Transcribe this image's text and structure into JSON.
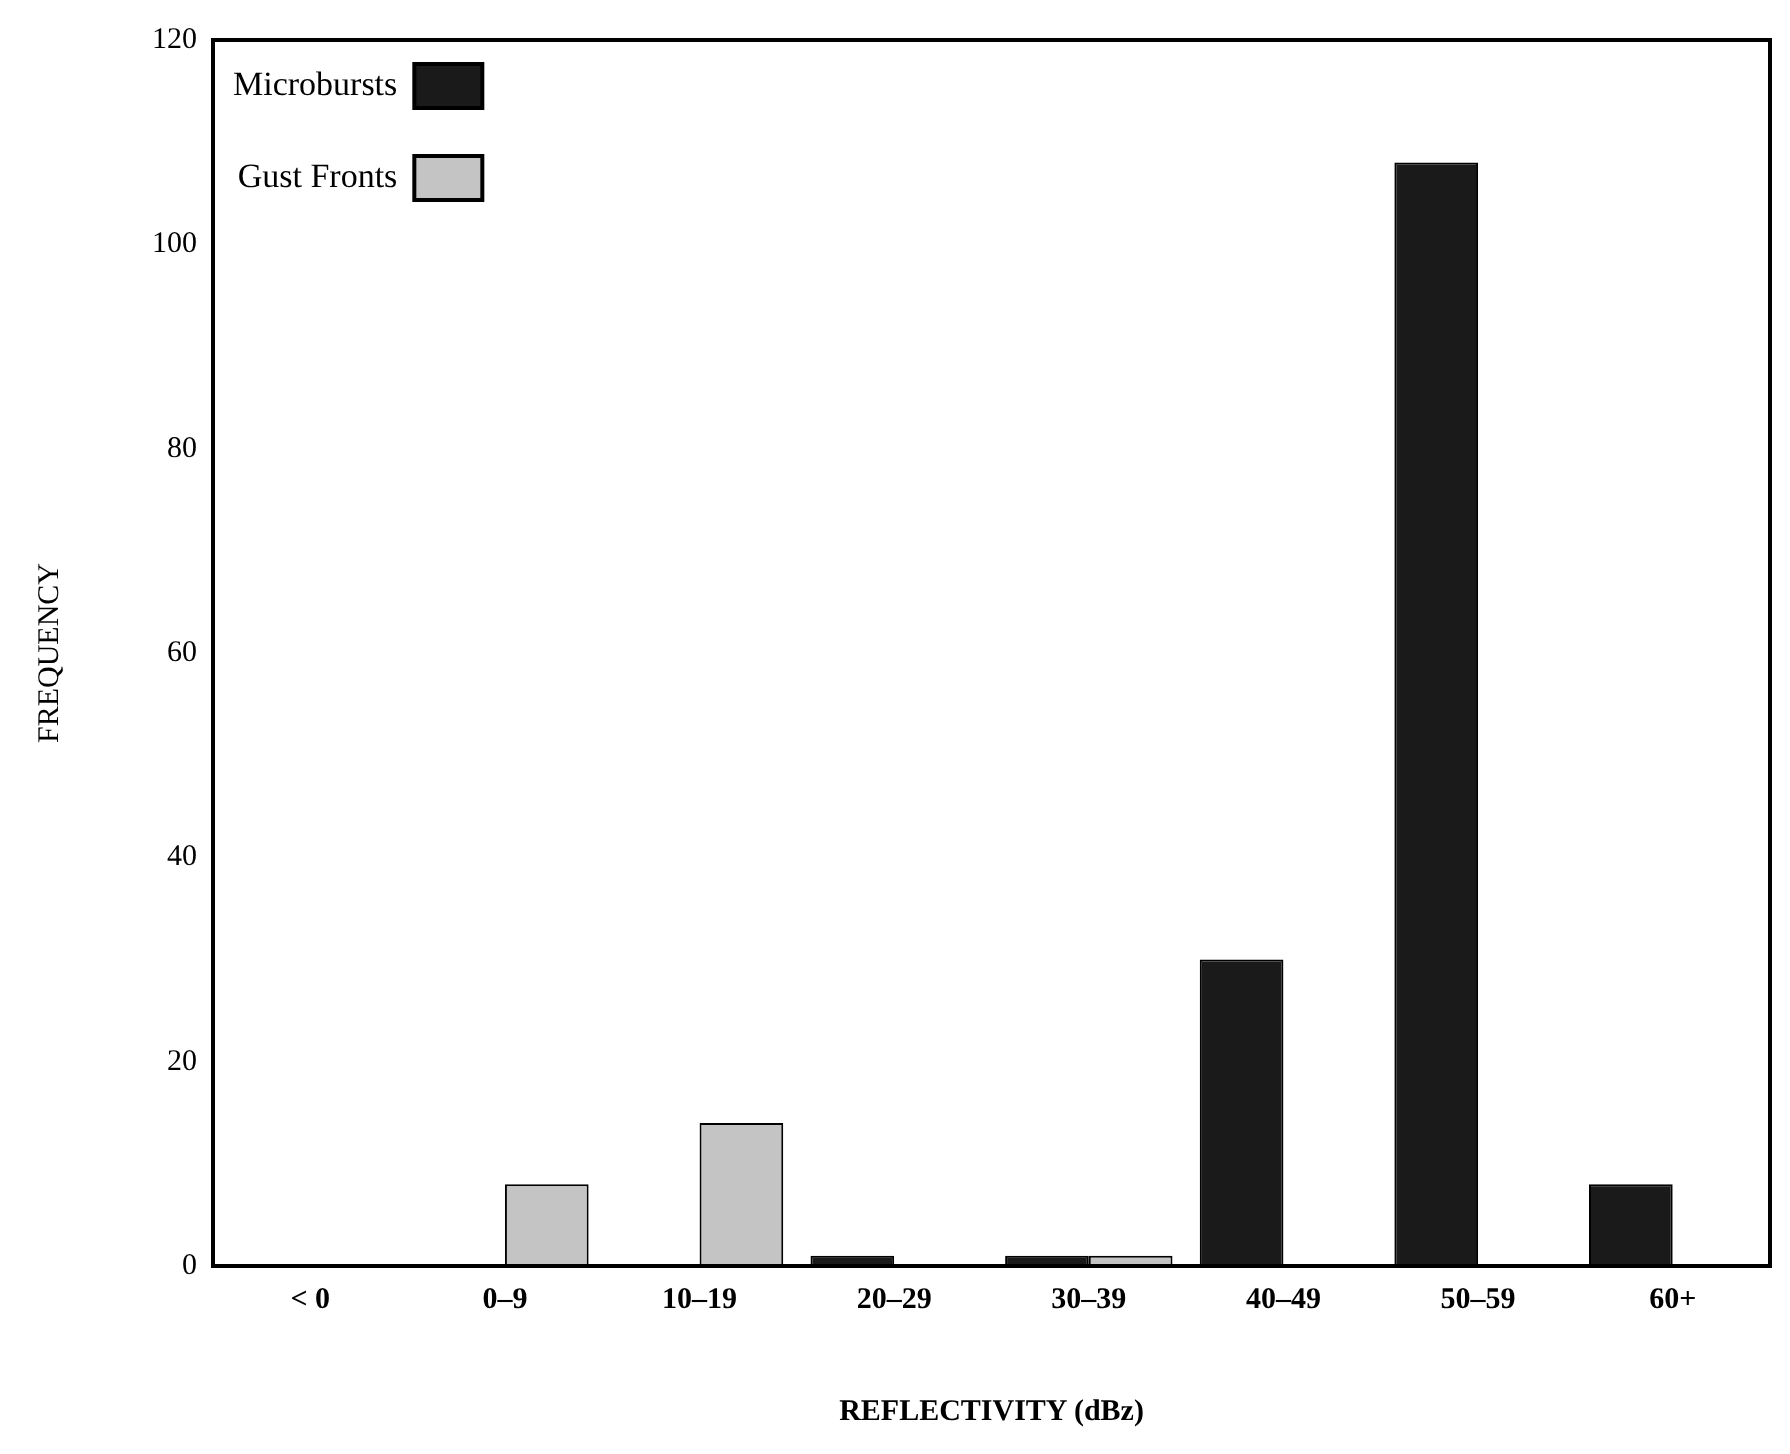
{
  "chart_data": {
    "type": "bar",
    "xlabel": "REFLECTIVITY (dBz)",
    "ylabel": "FREQUENCY",
    "categories": [
      "< 0",
      "0–9",
      "10–19",
      "20–29",
      "30–39",
      "40–49",
      "50–59",
      "60+"
    ],
    "series": [
      {
        "name": "Microbursts",
        "color": "#1a1a1a",
        "values": [
          0,
          0,
          0,
          1,
          1,
          30,
          108,
          8
        ]
      },
      {
        "name": "Gust Fronts",
        "color": "#c4c4c4",
        "values": [
          0,
          8,
          14,
          0,
          1,
          0,
          0,
          0
        ]
      }
    ],
    "ylim": [
      0,
      120
    ],
    "yticks": [
      0,
      20,
      40,
      60,
      80,
      100,
      120
    ],
    "grid": false,
    "legend": "top left"
  }
}
